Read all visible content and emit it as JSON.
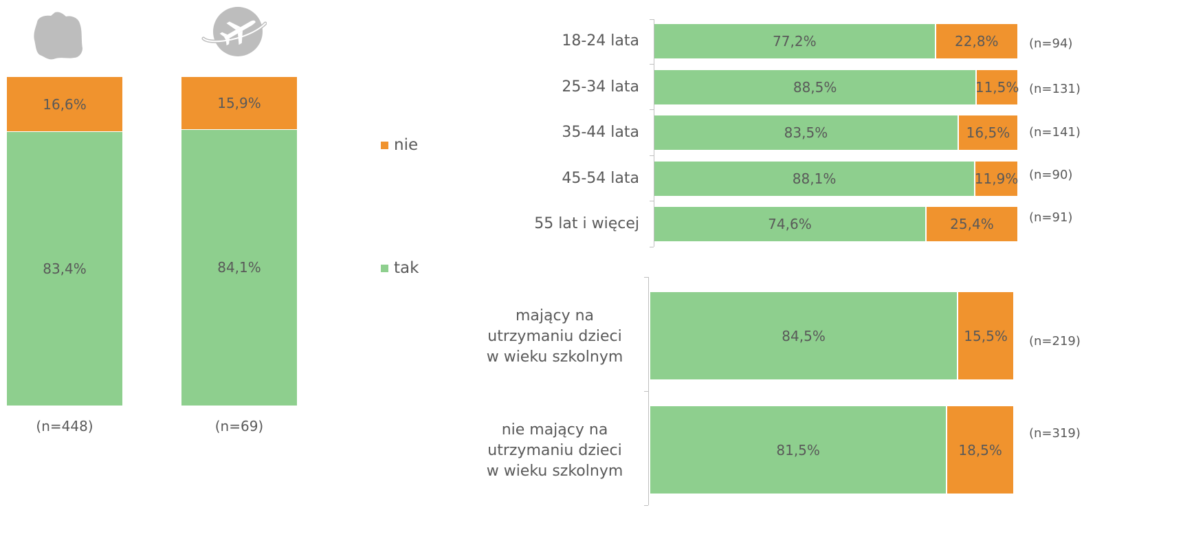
{
  "colors": {
    "tak": "#8ECF8E",
    "nie": "#F0932E",
    "text": "#595959",
    "icon": "#BDBDBD"
  },
  "icons": {
    "left": "poland-map-icon",
    "right": "airplane-globe-icon"
  },
  "legend": [
    {
      "key": "nie",
      "label": "nie"
    },
    {
      "key": "tak",
      "label": "tak"
    }
  ],
  "chart_data": [
    {
      "type": "bar",
      "stacked": true,
      "orientation": "vertical",
      "unit": "%",
      "categories": [
        "",
        ""
      ],
      "sample_sizes": [
        "(n=448)",
        "(n=69)"
      ],
      "series": [
        {
          "name": "tak",
          "values": [
            83.4,
            84.1
          ],
          "labels": [
            "83,4%",
            "84,1%"
          ]
        },
        {
          "name": "nie",
          "values": [
            16.6,
            15.9
          ],
          "labels": [
            "16,6%",
            "15,9%"
          ]
        }
      ],
      "ylim": [
        0,
        100
      ]
    },
    {
      "type": "bar",
      "stacked": true,
      "orientation": "horizontal",
      "unit": "%",
      "categories": [
        "18-24 lata",
        "25-34 lata",
        "35-44 lata",
        "45-54 lata",
        "55 lat i więcej"
      ],
      "sample_sizes": [
        "(n=94)",
        "(n=131)",
        "(n=141)",
        "(n=90)",
        "(n=91)"
      ],
      "series": [
        {
          "name": "tak",
          "values": [
            77.2,
            88.5,
            83.5,
            88.1,
            74.6
          ],
          "labels": [
            "77,2%",
            "88,5%",
            "83,5%",
            "88,1%",
            "74,6%"
          ]
        },
        {
          "name": "nie",
          "values": [
            22.8,
            11.5,
            16.5,
            11.9,
            25.4
          ],
          "labels": [
            "22,8%",
            "11,5%",
            "16,5%",
            "11,9%",
            "25,4%"
          ]
        }
      ],
      "xlim": [
        0,
        100
      ]
    },
    {
      "type": "bar",
      "stacked": true,
      "orientation": "horizontal",
      "unit": "%",
      "categories": [
        "mający na utrzymaniu dzieci w wieku szkolnym",
        "nie mający na utrzymaniu dzieci w wieku szkolnym"
      ],
      "category_lines": [
        [
          "mający na",
          "utrzymaniu dzieci",
          "w wieku szkolnym"
        ],
        [
          "nie mający na",
          "utrzymaniu dzieci",
          "w wieku szkolnym"
        ]
      ],
      "sample_sizes": [
        "(n=219)",
        "(n=319)"
      ],
      "series": [
        {
          "name": "tak",
          "values": [
            84.5,
            81.5
          ],
          "labels": [
            "84,5%",
            "81,5%"
          ]
        },
        {
          "name": "nie",
          "values": [
            15.5,
            18.5
          ],
          "labels": [
            "15,5%",
            "18,5%"
          ]
        }
      ],
      "xlim": [
        0,
        100
      ]
    }
  ]
}
